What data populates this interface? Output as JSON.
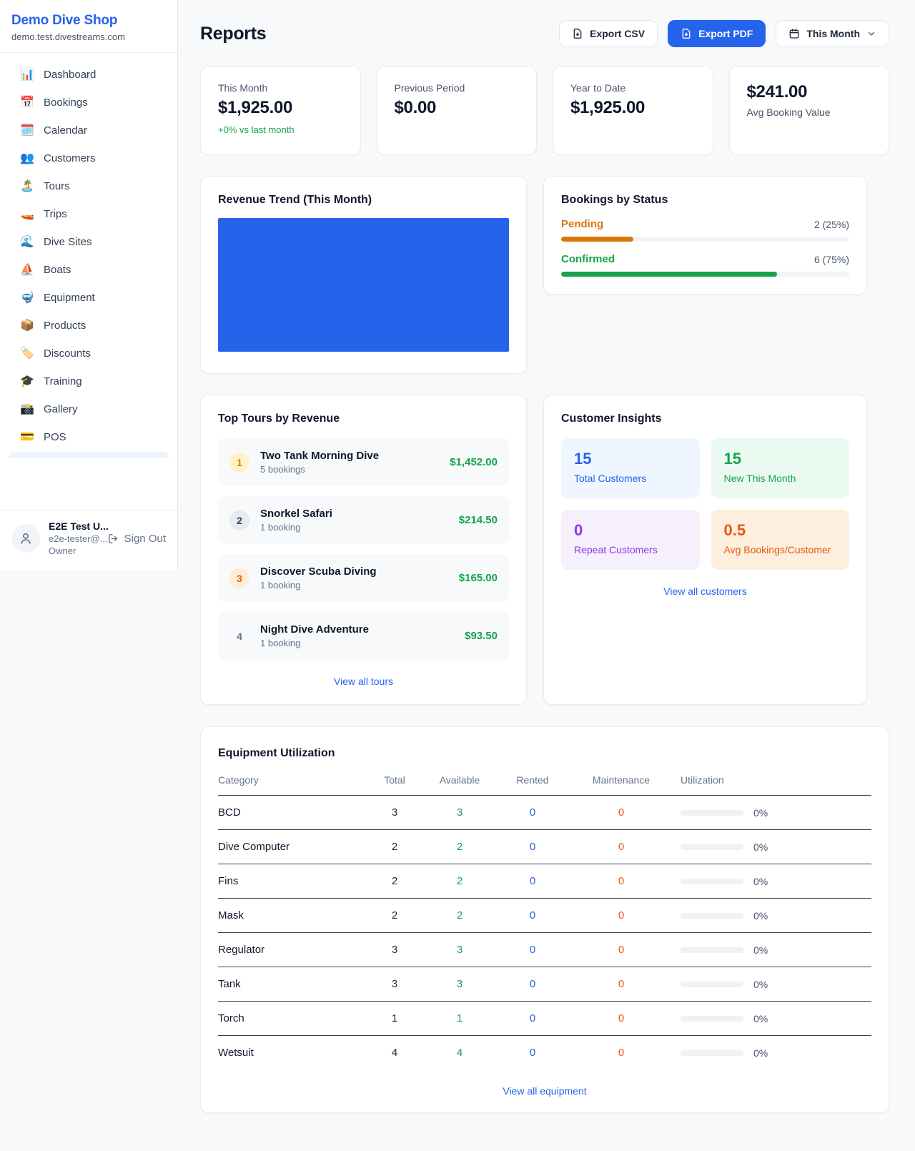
{
  "sidebar": {
    "shop_name": "Demo Dive Shop",
    "shop_domain": "demo.test.divestreams.com",
    "items": [
      {
        "label": "Dashboard",
        "icon": "📊"
      },
      {
        "label": "Bookings",
        "icon": "📅"
      },
      {
        "label": "Calendar",
        "icon": "🗓️"
      },
      {
        "label": "Customers",
        "icon": "👥"
      },
      {
        "label": "Tours",
        "icon": "🏝️"
      },
      {
        "label": "Trips",
        "icon": "🚤"
      },
      {
        "label": "Dive Sites",
        "icon": "🌊"
      },
      {
        "label": "Boats",
        "icon": "⛵"
      },
      {
        "label": "Equipment",
        "icon": "🤿"
      },
      {
        "label": "Products",
        "icon": "📦"
      },
      {
        "label": "Discounts",
        "icon": "🏷️"
      },
      {
        "label": "Training",
        "icon": "🎓"
      },
      {
        "label": "Gallery",
        "icon": "📸"
      },
      {
        "label": "POS",
        "icon": "💳"
      }
    ],
    "user": {
      "name": "E2E Test U...",
      "email": "e2e-tester@...",
      "role": "Owner",
      "sign_out_label": "Sign Out"
    }
  },
  "header": {
    "title": "Reports",
    "export_csv_label": "Export CSV",
    "export_pdf_label": "Export PDF",
    "period_label": "This Month"
  },
  "stats": {
    "cards": [
      {
        "label": "This Month",
        "value": "$1,925.00",
        "delta": "+0% vs last month"
      },
      {
        "label": "Previous Period",
        "value": "$0.00"
      },
      {
        "label": "Year to Date",
        "value": "$1,925.00"
      },
      {
        "label": "Avg Booking Value",
        "value": "$241.00"
      }
    ]
  },
  "chart_data": {
    "type": "bar",
    "title": "Revenue Trend (This Month)",
    "categories": [
      "This Month"
    ],
    "values": [
      1925.0
    ],
    "bar_color": "#2563eb",
    "note": "single solid blue bar fills the entire plot area; no axes, gridlines or labels visible"
  },
  "revenue_trend": {
    "title": "Revenue Trend (This Month)"
  },
  "bookings_by_status": {
    "title": "Bookings by Status",
    "rows": [
      {
        "label": "Pending",
        "value": "2 (25%)",
        "percent": 25,
        "color": "#d97706"
      },
      {
        "label": "Confirmed",
        "value": "6 (75%)",
        "percent": 75,
        "color": "#16a34a"
      }
    ]
  },
  "top_tours": {
    "title": "Top Tours by Revenue",
    "rows": [
      {
        "rank": "1",
        "name": "Two Tank Morning Dive",
        "bookings": "5 bookings",
        "revenue": "$1,452.00"
      },
      {
        "rank": "2",
        "name": "Snorkel Safari",
        "bookings": "1 booking",
        "revenue": "$214.50"
      },
      {
        "rank": "3",
        "name": "Discover Scuba Diving",
        "bookings": "1 booking",
        "revenue": "$165.00"
      },
      {
        "rank": "4",
        "name": "Night Dive Adventure",
        "bookings": "1 booking",
        "revenue": "$93.50"
      }
    ],
    "view_all_label": "View all tours"
  },
  "customer_insights": {
    "title": "Customer Insights",
    "tiles": [
      {
        "value": "15",
        "label": "Total Customers",
        "accent": "#2563eb"
      },
      {
        "value": "15",
        "label": "New This Month",
        "accent": "#16a34a"
      },
      {
        "value": "0",
        "label": "Repeat Customers",
        "accent": "#9333ea"
      },
      {
        "value": "0.5",
        "label": "Avg Bookings/Customer",
        "accent": "#ea580c"
      }
    ],
    "view_all_label": "View all customers"
  },
  "equipment": {
    "title": "Equipment Utilization",
    "columns": [
      "Category",
      "Total",
      "Available",
      "Rented",
      "Maintenance",
      "Utilization"
    ],
    "rows": [
      {
        "category": "BCD",
        "total": "3",
        "available": "3",
        "rented": "0",
        "maintenance": "0",
        "utilization": "0%",
        "utilization_percent": 0
      },
      {
        "category": "Dive Computer",
        "total": "2",
        "available": "2",
        "rented": "0",
        "maintenance": "0",
        "utilization": "0%",
        "utilization_percent": 0
      },
      {
        "category": "Fins",
        "total": "2",
        "available": "2",
        "rented": "0",
        "maintenance": "0",
        "utilization": "0%",
        "utilization_percent": 0
      },
      {
        "category": "Mask",
        "total": "2",
        "available": "2",
        "rented": "0",
        "maintenance": "0",
        "utilization": "0%",
        "utilization_percent": 0
      },
      {
        "category": "Regulator",
        "total": "3",
        "available": "3",
        "rented": "0",
        "maintenance": "0",
        "utilization": "0%",
        "utilization_percent": 0
      },
      {
        "category": "Tank",
        "total": "3",
        "available": "3",
        "rented": "0",
        "maintenance": "0",
        "utilization": "0%",
        "utilization_percent": 0
      },
      {
        "category": "Torch",
        "total": "1",
        "available": "1",
        "rented": "0",
        "maintenance": "0",
        "utilization": "0%",
        "utilization_percent": 0
      },
      {
        "category": "Wetsuit",
        "total": "4",
        "available": "4",
        "rented": "0",
        "maintenance": "0",
        "utilization": "0%",
        "utilization_percent": 0
      }
    ],
    "view_all_label": "View all equipment"
  },
  "colors": {
    "brand_blue": "#2563eb",
    "green": "#16a34a",
    "amber": "#d97706",
    "orange": "#ea580c",
    "purple": "#9333ea",
    "page_bg": "#f7f9fb"
  }
}
